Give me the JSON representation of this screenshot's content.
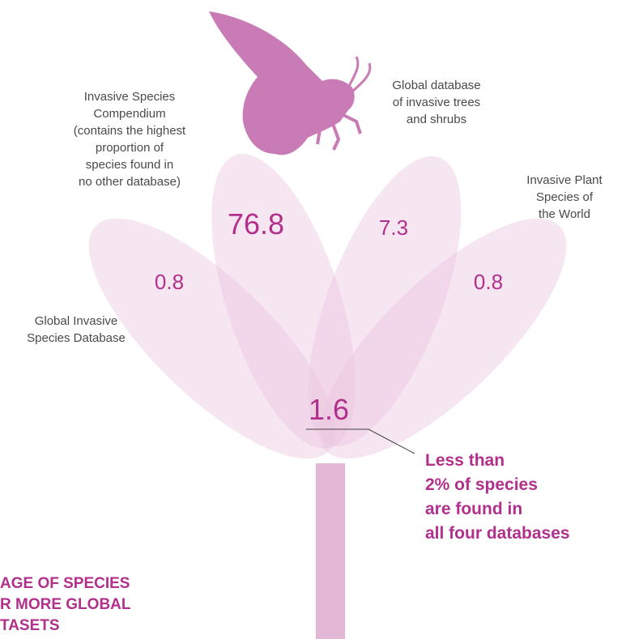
{
  "petals": [
    {
      "label": [
        "Global Invasive",
        "Species Database"
      ],
      "value": "0.8"
    },
    {
      "label": [
        "Invasive Species",
        "Compendium",
        "(contains the highest",
        "proportion of",
        "species found in",
        "no other database)"
      ],
      "value": "76.8"
    },
    {
      "label": [
        "Global database",
        "of invasive trees",
        "and shrubs"
      ],
      "value": "7.3"
    },
    {
      "label": [
        "Invasive Plant",
        "Species of",
        "the World"
      ],
      "value": "0.8"
    }
  ],
  "center": {
    "value": "1.6",
    "note": [
      "Less than",
      "2% of species",
      "are found in",
      "all four databases"
    ]
  },
  "title_fragment": [
    "AGE OF SPECIES",
    "R MORE GLOBAL",
    "TASETS"
  ]
}
